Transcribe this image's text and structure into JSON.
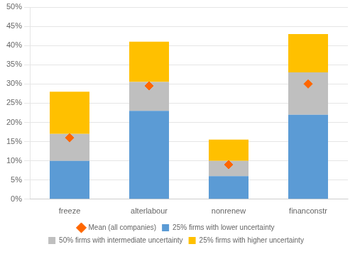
{
  "chart_data": {
    "type": "bar",
    "stacked": true,
    "categories": [
      "freeze",
      "alterlabour",
      "nonrenew",
      "financonstr"
    ],
    "series": [
      {
        "name": "25% firms with lower uncertainty",
        "color": "#5B9BD5",
        "values": [
          10,
          23,
          6,
          22
        ]
      },
      {
        "name": "50% firms with intermediate uncertainty",
        "color": "#BFBFBF",
        "values": [
          7,
          7.5,
          4,
          11
        ]
      },
      {
        "name": "25% firms with higher uncertainty",
        "color": "#FFC000",
        "values": [
          11,
          10.5,
          5.5,
          10
        ]
      },
      {
        "name": "Mean (all companies)",
        "type": "scatter",
        "marker": "diamond",
        "color": "#FF6600",
        "values": [
          16,
          29.5,
          9,
          30
        ]
      }
    ],
    "ylim": [
      0,
      50
    ],
    "yticks": [
      {
        "value": 0,
        "label": "0%"
      },
      {
        "value": 5,
        "label": "5%"
      },
      {
        "value": 10,
        "label": "10%"
      },
      {
        "value": 15,
        "label": "15%"
      },
      {
        "value": 20,
        "label": "20%"
      },
      {
        "value": 25,
        "label": "25%"
      },
      {
        "value": 30,
        "label": "30%"
      },
      {
        "value": 35,
        "label": "35%"
      },
      {
        "value": 40,
        "label": "40%"
      },
      {
        "value": 45,
        "label": "45%"
      },
      {
        "value": 50,
        "label": "50%"
      }
    ],
    "grid": true,
    "legend": "bottom"
  }
}
